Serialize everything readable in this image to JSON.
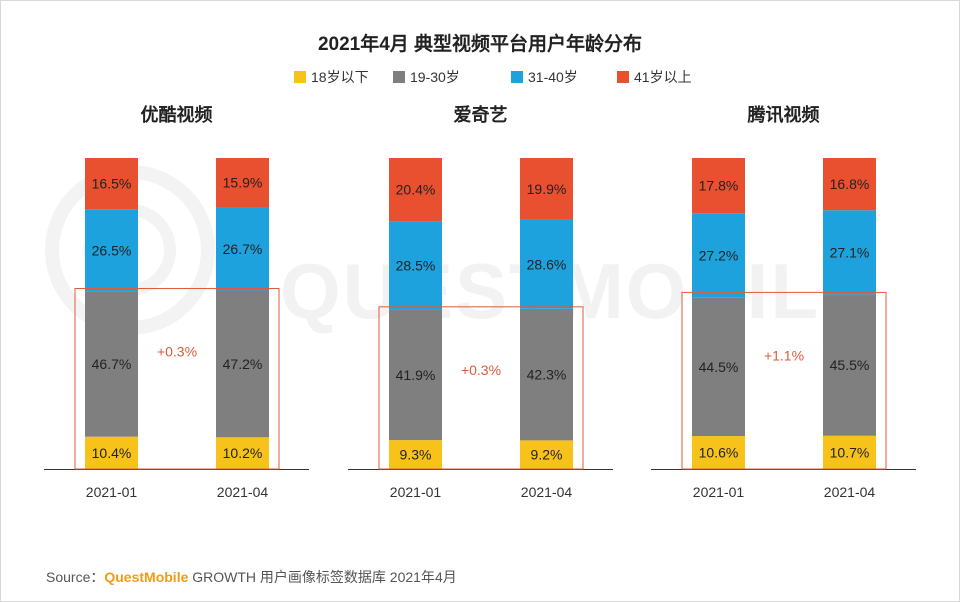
{
  "chart_data": {
    "type": "bar",
    "stacked": true,
    "percent": true,
    "title": "2021年4月 典型视频平台用户年龄分布",
    "legend": [
      {
        "name": "18岁以下",
        "color": "#f7c31b"
      },
      {
        "name": "19-30岁",
        "color": "#7f7f7f"
      },
      {
        "name": "31-40岁",
        "color": "#1ea2de"
      },
      {
        "name": "41岁以上",
        "color": "#e9502f"
      }
    ],
    "categories": [
      "2021-01",
      "2021-04"
    ],
    "panels": [
      {
        "title": "优酷视频",
        "delta": "+0.3%",
        "series": [
          {
            "name": "18岁以下",
            "values": [
              10.4,
              10.2
            ]
          },
          {
            "name": "19-30岁",
            "values": [
              46.7,
              47.2
            ]
          },
          {
            "name": "31-40岁",
            "values": [
              26.5,
              26.7
            ]
          },
          {
            "name": "41岁以上",
            "values": [
              16.5,
              15.9
            ]
          }
        ]
      },
      {
        "title": "爱奇艺",
        "delta": "+0.3%",
        "series": [
          {
            "name": "18岁以下",
            "values": [
              9.3,
              9.2
            ]
          },
          {
            "name": "19-30岁",
            "values": [
              41.9,
              42.3
            ]
          },
          {
            "name": "31-40岁",
            "values": [
              28.5,
              28.6
            ]
          },
          {
            "name": "41岁以上",
            "values": [
              20.4,
              19.9
            ]
          }
        ]
      },
      {
        "title": "腾讯视频",
        "delta": "+1.1%",
        "series": [
          {
            "name": "18岁以下",
            "values": [
              10.6,
              10.7
            ]
          },
          {
            "name": "19-30岁",
            "values": [
              44.5,
              45.5
            ]
          },
          {
            "name": "31-40岁",
            "values": [
              27.2,
              27.1
            ]
          },
          {
            "name": "41岁以上",
            "values": [
              17.8,
              16.8
            ]
          }
        ]
      }
    ],
    "highlight_note": "boxed region highlights 18岁以下 + 19-30岁 segments",
    "delta_color": "#e05a38",
    "box_color": "#e05a38"
  },
  "source": {
    "prefix": "Source：",
    "brand": "QuestMobile",
    "text": " GROWTH 用户画像标签数据库 2021年4月"
  },
  "watermark": "QUESTMOBILE"
}
